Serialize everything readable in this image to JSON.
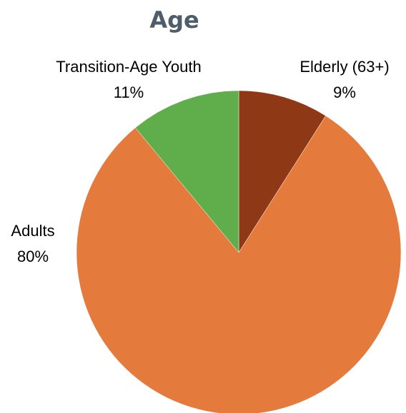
{
  "chart_data": {
    "type": "pie",
    "title": "Age",
    "categories": [
      "Elderly (63+)",
      "Adults",
      "Transition-Age Youth"
    ],
    "values": [
      9,
      80,
      11
    ],
    "value_labels": [
      "9%",
      "80%",
      "11%"
    ],
    "colors": [
      "#8e3815",
      "#e57a3d",
      "#60ad4b"
    ]
  }
}
